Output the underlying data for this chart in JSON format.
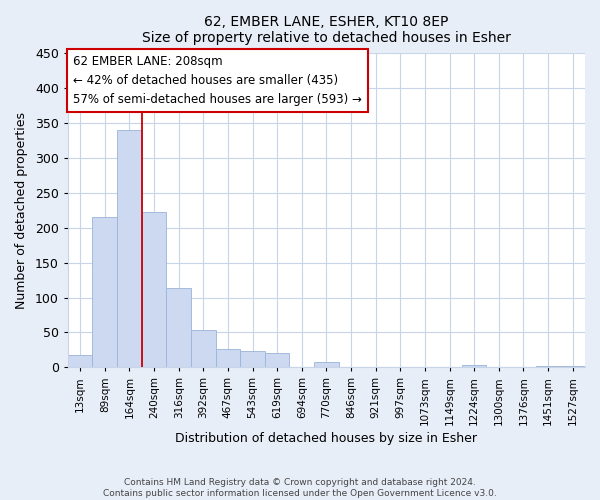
{
  "title": "62, EMBER LANE, ESHER, KT10 8EP",
  "subtitle": "Size of property relative to detached houses in Esher",
  "xlabel": "Distribution of detached houses by size in Esher",
  "ylabel": "Number of detached properties",
  "bar_labels": [
    "13sqm",
    "89sqm",
    "164sqm",
    "240sqm",
    "316sqm",
    "392sqm",
    "467sqm",
    "543sqm",
    "619sqm",
    "694sqm",
    "770sqm",
    "846sqm",
    "921sqm",
    "997sqm",
    "1073sqm",
    "1149sqm",
    "1224sqm",
    "1300sqm",
    "1376sqm",
    "1451sqm",
    "1527sqm"
  ],
  "bar_values": [
    18,
    215,
    340,
    222,
    113,
    53,
    26,
    24,
    20,
    0,
    7,
    0,
    0,
    0,
    0,
    0,
    3,
    0,
    0,
    2,
    2
  ],
  "bar_color": "#ccd9f0",
  "bar_edge_color": "#9ab4d8",
  "ylim": [
    0,
    450
  ],
  "yticks": [
    0,
    50,
    100,
    150,
    200,
    250,
    300,
    350,
    400,
    450
  ],
  "vline_x": 3,
  "vline_color": "#cc0000",
  "annotation_box_text": "62 EMBER LANE: 208sqm\n← 42% of detached houses are smaller (435)\n57% of semi-detached houses are larger (593) →",
  "footer_text": "Contains HM Land Registry data © Crown copyright and database right 2024.\nContains public sector information licensed under the Open Government Licence v3.0.",
  "bg_color": "#e8eef8",
  "plot_bg_color": "#ffffff",
  "grid_color": "#c8d4e8"
}
